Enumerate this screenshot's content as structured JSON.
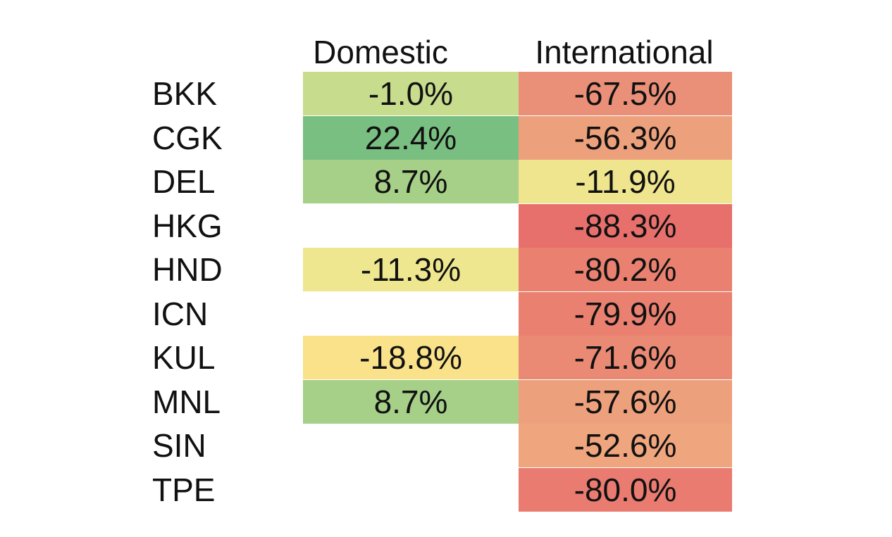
{
  "chart_data": {
    "type": "heatmap",
    "columns": [
      "Domestic",
      "International"
    ],
    "rows": [
      {
        "label": "BKK",
        "domestic": "-1.0%",
        "international": "-67.5%",
        "domestic_value": -1.0,
        "international_value": -67.5,
        "domestic_color": "#c8dc8e",
        "international_color": "#ea8f78"
      },
      {
        "label": "CGK",
        "domestic": "22.4%",
        "international": "-56.3%",
        "domestic_value": 22.4,
        "international_value": -56.3,
        "domestic_color": "#7abf82",
        "international_color": "#eda07c"
      },
      {
        "label": "DEL",
        "domestic": "8.7%",
        "international": "-11.9%",
        "domestic_value": 8.7,
        "international_value": -11.9,
        "domestic_color": "#a6cf88",
        "international_color": "#efe58e"
      },
      {
        "label": "HKG",
        "domestic": "",
        "international": "-88.3%",
        "domestic_value": null,
        "international_value": -88.3,
        "domestic_color": "#ffffff",
        "international_color": "#e76f6c"
      },
      {
        "label": "HND",
        "domestic": "-11.3%",
        "international": "-80.2%",
        "domestic_value": -11.3,
        "international_value": -80.2,
        "domestic_color": "#efe790",
        "international_color": "#e98070"
      },
      {
        "label": "ICN",
        "domestic": "",
        "international": "-79.9%",
        "domestic_value": null,
        "international_value": -79.9,
        "domestic_color": "#ffffff",
        "international_color": "#e98070"
      },
      {
        "label": "KUL",
        "domestic": "-18.8%",
        "international": "-71.6%",
        "domestic_value": -18.8,
        "international_value": -71.6,
        "domestic_color": "#f9e28a",
        "international_color": "#ea8a75"
      },
      {
        "label": "MNL",
        "domestic": "8.7%",
        "international": "-57.6%",
        "domestic_value": 8.7,
        "international_value": -57.6,
        "domestic_color": "#a6cf88",
        "international_color": "#eda07c"
      },
      {
        "label": "SIN",
        "domestic": "",
        "international": "-52.6%",
        "domestic_value": null,
        "international_value": -52.6,
        "domestic_color": "#ffffff",
        "international_color": "#efa57e"
      },
      {
        "label": "TPE",
        "domestic": "",
        "international": "-80.0%",
        "domestic_value": null,
        "international_value": -80.0,
        "domestic_color": "#ffffff",
        "international_color": "#e97b70"
      }
    ]
  }
}
